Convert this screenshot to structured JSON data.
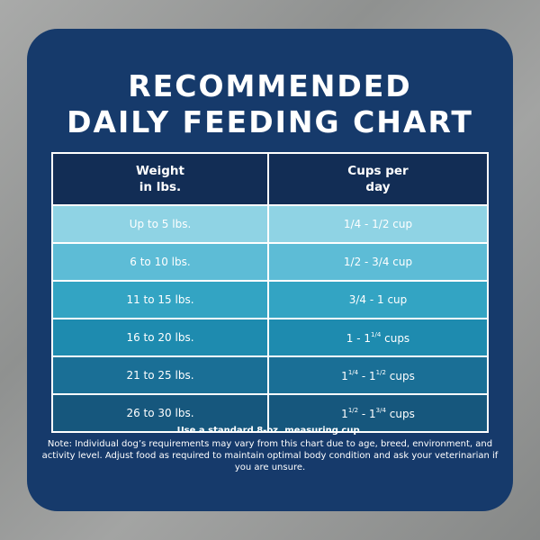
{
  "title": {
    "line1": "RECOMMENDED",
    "line2": "DAILY FEEDING CHART"
  },
  "table": {
    "headers": {
      "weight_line1": "Weight",
      "weight_line2": "in lbs.",
      "cups_line1": "Cups per",
      "cups_line2": "day"
    },
    "rows": [
      {
        "weight": "Up to 5 lbs.",
        "cups": {
          "a": "1/4 - 1/2 cup"
        },
        "color": "#8fd3e4"
      },
      {
        "weight": "6 to 10 lbs.",
        "cups": {
          "a": "1/2 - 3/4 cup"
        },
        "color": "#5dbcd6"
      },
      {
        "weight": "11 to 15 lbs.",
        "cups": {
          "a": "3/4 - 1 cup"
        },
        "color": "#33a4c3"
      },
      {
        "weight": "16 to 20 lbs.",
        "cups": {
          "a": "1 - 1",
          "sup1": "1/4",
          "tail": " cups"
        },
        "color": "#1e8baf"
      },
      {
        "weight": "21 to 25 lbs.",
        "cups": {
          "a": "1",
          "sup1": "1/4",
          "mid": " - 1",
          "sup2": "1/2",
          "tail": " cups"
        },
        "color": "#1a6f96"
      },
      {
        "weight": "26 to 30 lbs.",
        "cups": {
          "a": "1",
          "sup1": "1/2",
          "mid": " - 1",
          "sup2": "3/4",
          "tail": " cups"
        },
        "color": "#16577d"
      }
    ]
  },
  "notes": {
    "measure": "Use a standard 8-oz. measuring cup.",
    "note": "Note: Individual dog’s requirements may vary from this chart due to age, breed, environment, and activity level. Adjust food as required to maintain optimal body condition and ask your veterinarian if you are unsure."
  },
  "colors": {
    "card": "#163a6b",
    "header_row": "#122d55",
    "text": "#ffffff"
  }
}
